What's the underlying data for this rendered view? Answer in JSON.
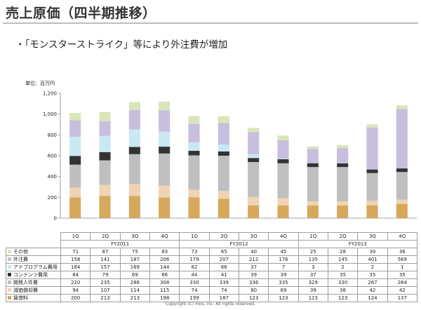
{
  "slide": {
    "title": "売上原価（四半期推移）",
    "bullet": "・「モンスターストライク」等により外注費が増加",
    "footer": "Copyright (C) mixi, Inc. All rights reserved."
  },
  "chart_data": {
    "type": "bar",
    "stacked": true,
    "unit_label": "単位：百万円",
    "ylim": [
      0,
      1200
    ],
    "yticks": [
      "0",
      "200",
      "400",
      "600",
      "800",
      "1,000",
      "1,200"
    ],
    "categories": [
      "1Q",
      "2Q",
      "3Q",
      "4Q",
      "1Q",
      "2Q",
      "3Q",
      "4Q",
      "1Q",
      "2Q",
      "3Q",
      "4Q"
    ],
    "years": [
      {
        "label": "FY2011",
        "span": [
          0,
          3
        ]
      },
      {
        "label": "FY2012",
        "span": [
          4,
          7
        ]
      },
      {
        "label": "FY2013",
        "span": [
          8,
          11
        ]
      }
    ],
    "series": [
      {
        "name": "賃借料",
        "color": "#d6a85c",
        "values": [
          200,
          213,
          213,
          198,
          199,
          187,
          123,
          123,
          123,
          123,
          124,
          137
        ]
      },
      {
        "name": "減価償却費",
        "color": "#efd3b3",
        "values": [
          94,
          107,
          114,
          115,
          74,
          74,
          80,
          69,
          39,
          38,
          42,
          42
        ]
      },
      {
        "name": "開発人件費",
        "color": "#bfbfbf",
        "values": [
          220,
          235,
          288,
          308,
          330,
          339,
          336,
          335,
          329,
          330,
          267,
          264
        ]
      },
      {
        "name": "コンテンツ費用",
        "color": "#333333",
        "values": [
          84,
          79,
          69,
          66,
          44,
          41,
          39,
          39,
          37,
          35,
          35,
          35
        ]
      },
      {
        "name": "アドプログラム費用",
        "color": "#c9e8f2",
        "values": [
          184,
          157,
          169,
          144,
          82,
          66,
          37,
          7,
          3,
          2,
          2,
          1
        ]
      },
      {
        "name": "外注費",
        "color": "#c8bedd",
        "values": [
          158,
          141,
          187,
          206,
          179,
          207,
          212,
          176,
          135,
          145,
          401,
          569
        ]
      },
      {
        "name": "その他",
        "color": "#d8e6b8",
        "values": [
          71,
          87,
          75,
          83,
          73,
          65,
          40,
          45,
          25,
          28,
          30,
          36
        ]
      }
    ],
    "table_row_order": [
      "その他",
      "外注費",
      "アドプログラム費用",
      "コンテンツ費用",
      "開発人件費",
      "減価償却費",
      "賃借料"
    ]
  }
}
